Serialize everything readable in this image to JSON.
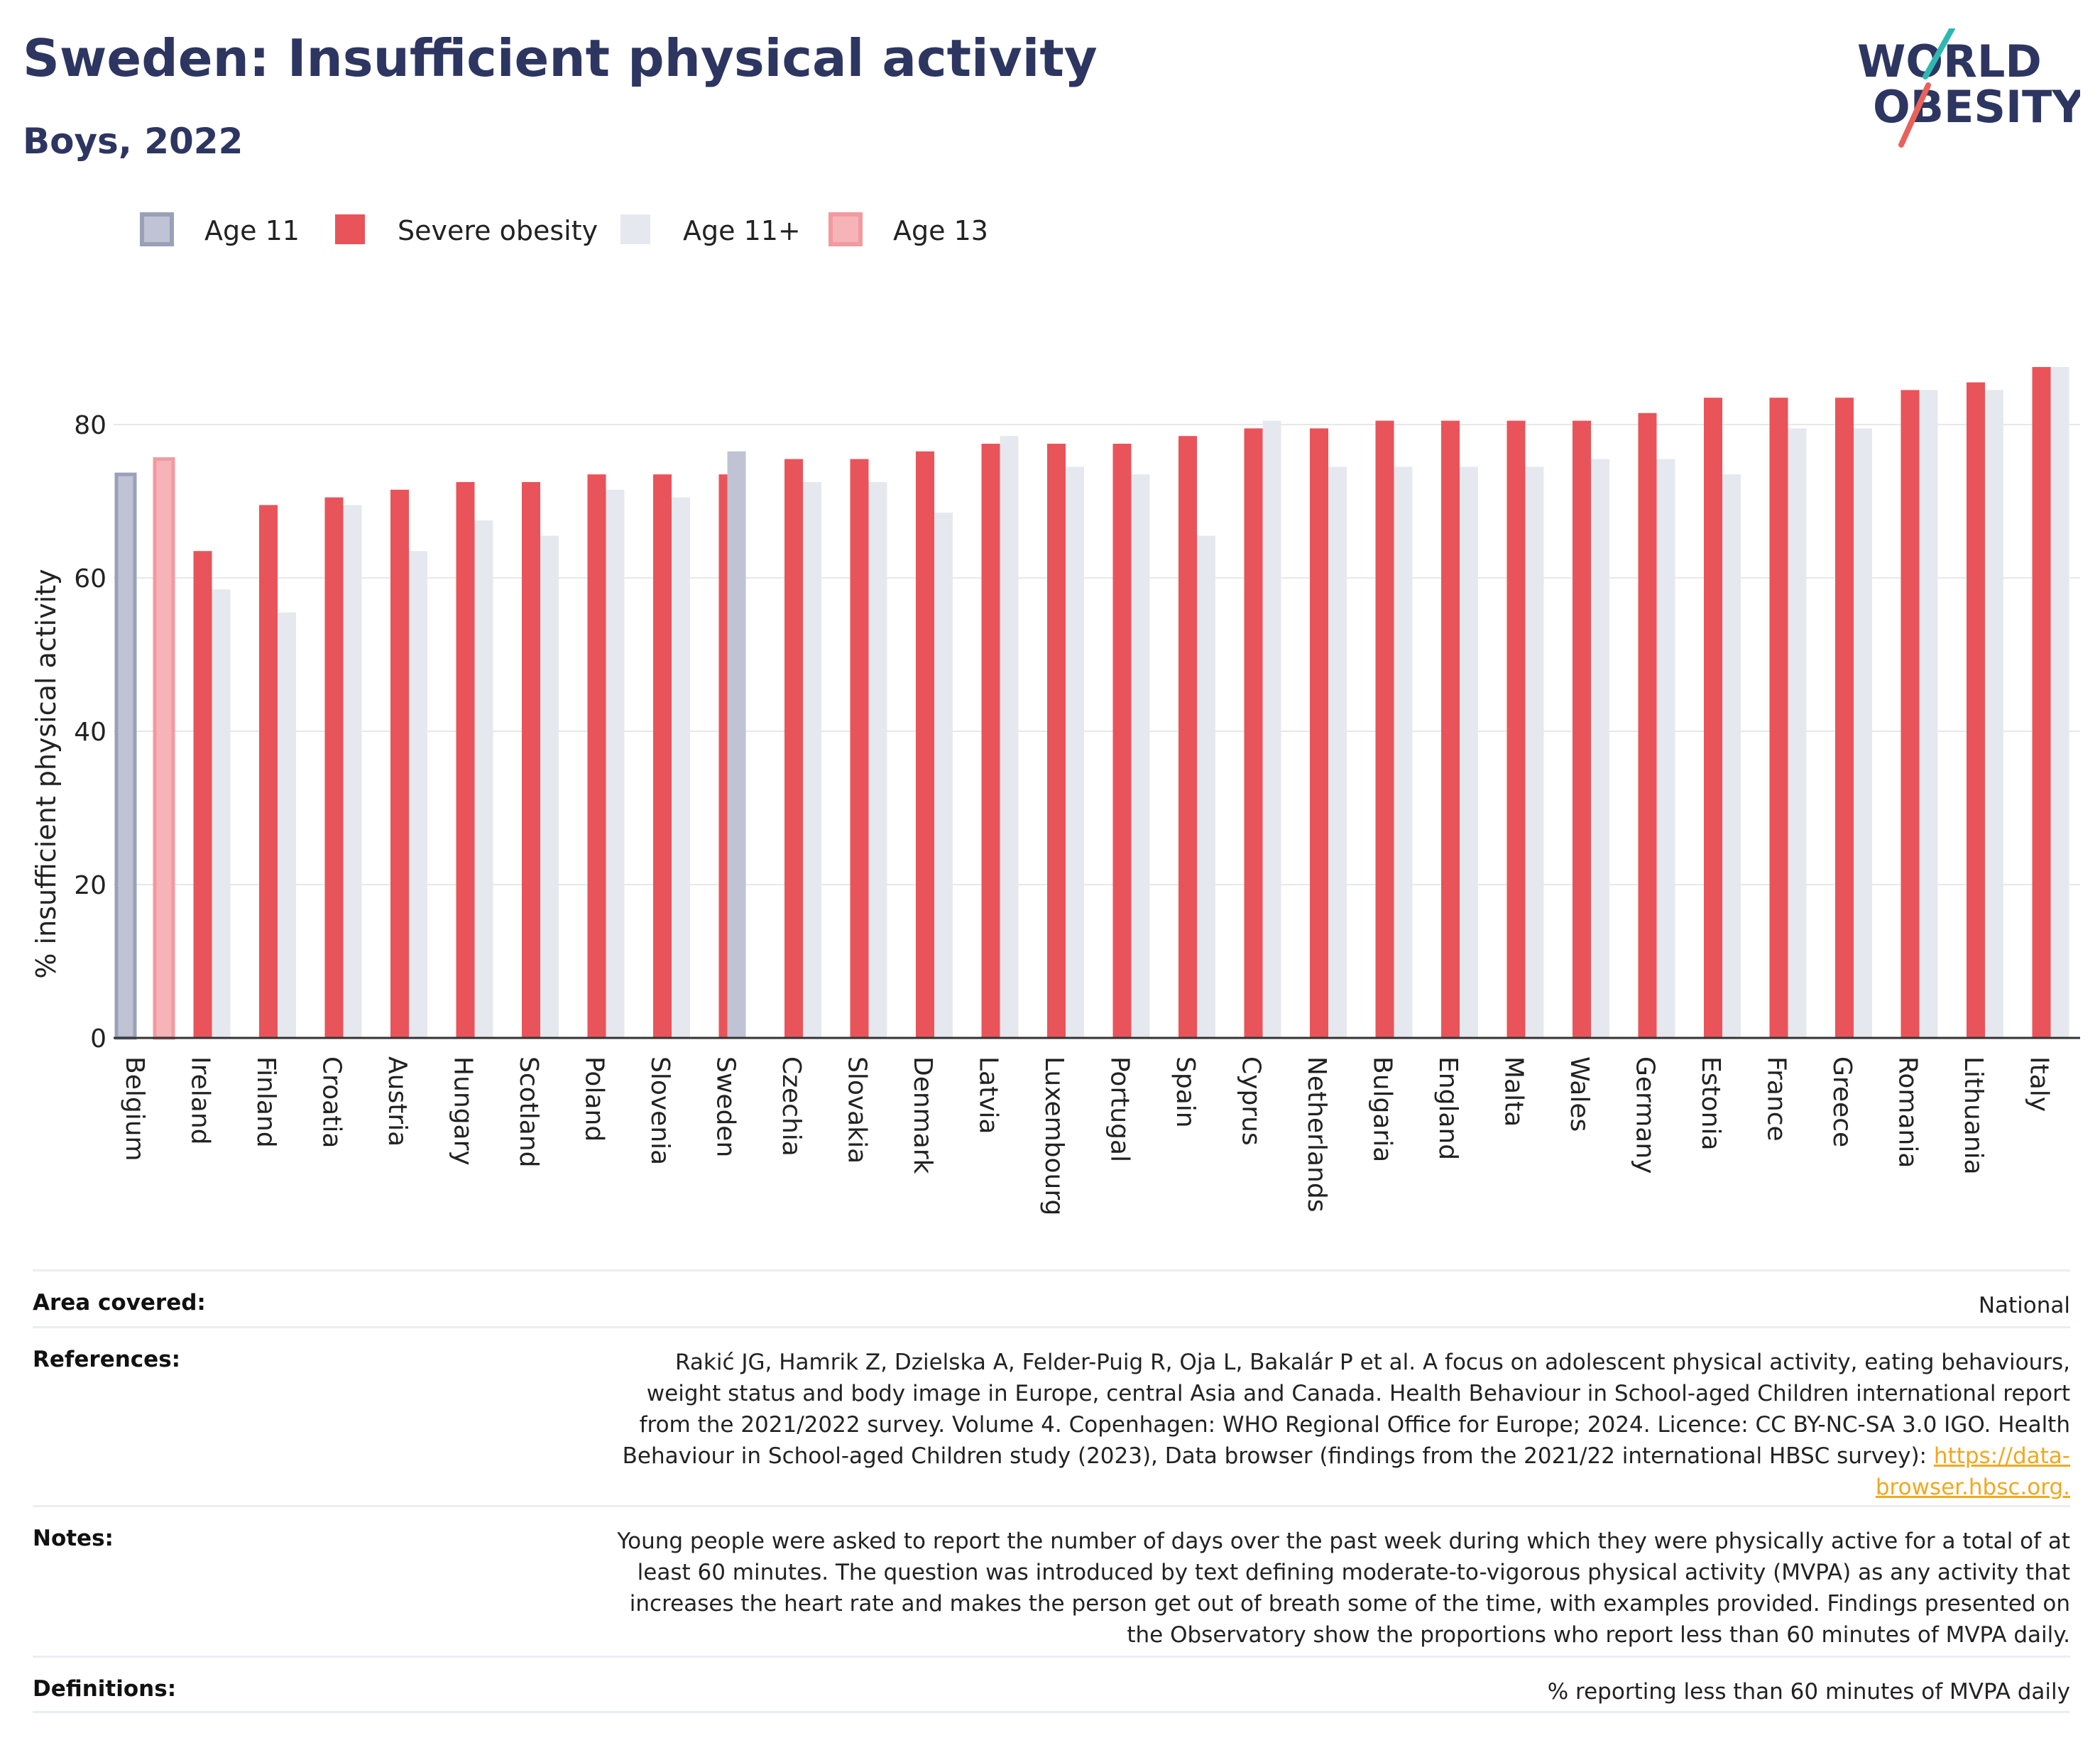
{
  "title": "Sweden: Insufficient physical activity",
  "subtitle": "Boys, 2022",
  "logo": {
    "line1": "WORLD",
    "line2": "OBESITY"
  },
  "colors": {
    "age11": "#bfc3d3",
    "severe": "#e8545a",
    "age11plus": "#e6e8ef",
    "age13": "#f6b4b9",
    "axis": "#333333",
    "grid": "#e8e8e8"
  },
  "chart_data": {
    "type": "bar",
    "ylabel": "% insufficient physical activity",
    "ylim": [
      0,
      90
    ],
    "yticks": [
      0,
      20,
      40,
      60,
      80
    ],
    "legend_position": "top-left",
    "categories": [
      "Belgium",
      "Ireland",
      "Finland",
      "Croatia",
      "Austria",
      "Hungary",
      "Scotland",
      "Poland",
      "Slovenia",
      "Sweden",
      "Czechia",
      "Slovakia",
      "Denmark",
      "Latvia",
      "Luxembourg",
      "Portugal",
      "Spain",
      "Cyprus",
      "Netherlands",
      "Bulgaria",
      "England",
      "Malta",
      "Wales",
      "Germany",
      "Estonia",
      "France",
      "Greece",
      "Romania",
      "Lithuania",
      "Italy"
    ],
    "series": [
      {
        "name": "Age 11",
        "key": "age11",
        "values": [
          73.5,
          null,
          null,
          null,
          null,
          null,
          null,
          null,
          null,
          null,
          null,
          null,
          null,
          null,
          null,
          null,
          null,
          null,
          null,
          null,
          null,
          null,
          null,
          null,
          null,
          null,
          null,
          null,
          null,
          null
        ]
      },
      {
        "name": "Severe obesity",
        "key": "severe",
        "values": [
          null,
          63.5,
          69.5,
          70.5,
          71.5,
          72.5,
          72.5,
          73.5,
          73.5,
          73.5,
          75.5,
          75.5,
          76.5,
          77.5,
          77.5,
          77.5,
          78.5,
          79.5,
          79.5,
          80.5,
          80.5,
          80.5,
          80.5,
          81.5,
          83.5,
          83.5,
          83.5,
          84.5,
          85.5,
          87.5
        ]
      },
      {
        "name": "Age 11+",
        "key": "age11plus",
        "values": [
          null,
          58.5,
          55.5,
          69.5,
          63.5,
          67.5,
          65.5,
          71.5,
          70.5,
          76.5,
          72.5,
          72.5,
          68.5,
          78.5,
          74.5,
          73.5,
          65.5,
          80.5,
          74.5,
          74.5,
          74.5,
          74.5,
          75.5,
          75.5,
          73.5,
          79.5,
          79.5,
          84.5,
          84.5,
          87.5
        ]
      },
      {
        "name": "Age 13",
        "key": "age13",
        "values": [
          75.5,
          null,
          null,
          null,
          null,
          null,
          null,
          null,
          null,
          null,
          null,
          null,
          null,
          null,
          null,
          null,
          null,
          null,
          null,
          null,
          null,
          null,
          null,
          null,
          null,
          null,
          null,
          null,
          null,
          null
        ]
      }
    ]
  },
  "info": {
    "area_label": "Area covered:",
    "area_value": "National",
    "refs_label": "References:",
    "refs_value": "Rakić JG, Hamrik Z, Dzielska A, Felder-Puig R, Oja L, Bakalár P et al. A focus on adolescent physical activity, eating behaviours, weight status and body image in Europe, central Asia and Canada. Health Behaviour in School-aged Children international report from the 2021/2022 survey. Volume 4. Copenhagen: WHO Regional Office for Europe; 2024. Licence: CC BY-NC-SA 3.0 IGO. Health Behaviour in School-aged Children study (2023), Data browser (findings from the 2021/22 international HBSC survey): ",
    "refs_link": "https://data-browser.hbsc.org.",
    "notes_label": "Notes:",
    "notes_value": "Young people were asked to report the number of days over the past week during which they were physically active for a total of at least 60 minutes. The question was introduced by text defining moderate-to-vigorous physical activity (MVPA) as any activity that increases the heart rate and makes the person get out of breath some of the time, with examples provided. Findings presented on the Observatory show the proportions who report less than 60 minutes of MVPA daily.",
    "defs_label": "Definitions:",
    "defs_value": "% reporting less than 60 minutes of MVPA daily"
  }
}
